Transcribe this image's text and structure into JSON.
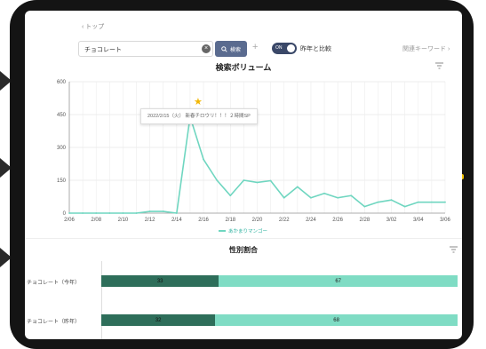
{
  "breadcrumb": "‹ トップ",
  "search": {
    "value": "チョコレート",
    "button_label": "検索"
  },
  "toggle": {
    "state_label": "ON",
    "compare_label": "昨年と比較"
  },
  "related_keywords_label": "関連キーワード ›",
  "volume_chart": {
    "title": "検索ボリューム",
    "tooltip": "2022/2/15（火）  新春チロウリ！！！２時間SP",
    "legend": "あかまりマンゴー"
  },
  "chart_data": [
    {
      "type": "line",
      "title": "検索ボリューム",
      "x": [
        "2/06",
        "2/07",
        "2/08",
        "2/09",
        "2/10",
        "2/11",
        "2/12",
        "2/13",
        "2/14",
        "2/15",
        "2/16",
        "2/17",
        "2/18",
        "2/19",
        "2/20",
        "2/21",
        "2/22",
        "2/23",
        "2/24",
        "2/25",
        "2/26",
        "2/27",
        "2/28",
        "3/01",
        "3/02",
        "3/03",
        "3/04",
        "3/05",
        "3/06"
      ],
      "x_tick_labels": [
        "2/06",
        "2/08",
        "2/10",
        "2/12",
        "2/14",
        "2/16",
        "2/18",
        "2/20",
        "2/22",
        "2/24",
        "2/26",
        "2/28",
        "3/02",
        "3/04",
        "3/06"
      ],
      "series": [
        {
          "name": "あかまりマンゴー",
          "color": "#6fd6c0",
          "values": [
            0,
            0,
            0,
            0,
            0,
            0,
            8,
            8,
            0,
            440,
            245,
            150,
            80,
            150,
            140,
            148,
            70,
            120,
            70,
            90,
            70,
            80,
            30,
            50,
            60,
            30,
            50,
            50,
            50
          ]
        }
      ],
      "y_ticks": [
        0,
        150,
        300,
        450,
        600
      ],
      "ylim": [
        0,
        600
      ],
      "grid": true
    },
    {
      "type": "bar",
      "title": "性別割合",
      "categories": [
        "チョコレート（今年）",
        "チョコレート（昨年）"
      ],
      "series": [
        {
          "values": [
            33,
            32
          ],
          "color": "#2e6e5a"
        },
        {
          "values": [
            67,
            68
          ],
          "color": "#7fdcc4"
        }
      ],
      "stacked": true,
      "orientation": "horizontal"
    }
  ],
  "gender_chart": {
    "title": "性別割合",
    "rows": [
      {
        "label": "チョコレート（今年）",
        "male": 33,
        "female": 67
      },
      {
        "label": "チョコレート（昨年）",
        "male": 32,
        "female": 68
      }
    ]
  },
  "icons": {
    "star": "star-icon",
    "filter": "filter-icon",
    "search": "search-icon",
    "clear": "clear-icon",
    "plus": "plus-icon"
  }
}
